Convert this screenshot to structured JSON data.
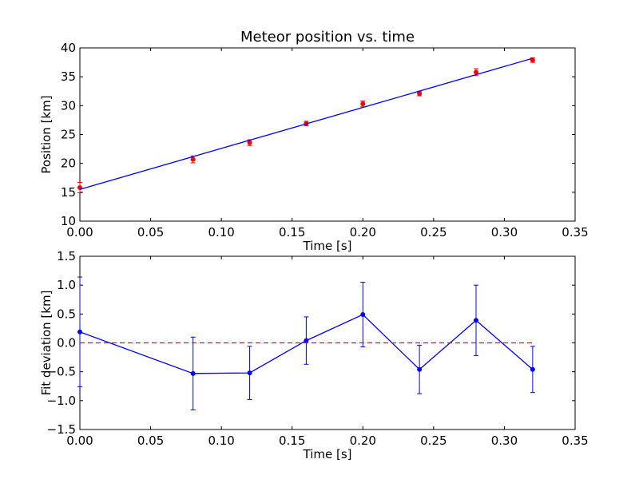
{
  "chart_data": [
    {
      "type": "line",
      "title": "Meteor position vs. time",
      "xlabel": "Time [s]",
      "ylabel": "Position [km]",
      "xlim": [
        0,
        0.35
      ],
      "ylim": [
        10,
        40
      ],
      "x_ticks": [
        0.0,
        0.05,
        0.1,
        0.15,
        0.2,
        0.25,
        0.3,
        0.35
      ],
      "x_tick_labels": [
        "0.00",
        "0.05",
        "0.10",
        "0.15",
        "0.20",
        "0.25",
        "0.30",
        "0.35"
      ],
      "y_ticks": [
        10,
        15,
        20,
        25,
        30,
        35,
        40
      ],
      "y_tick_labels": [
        "10",
        "15",
        "20",
        "25",
        "30",
        "35",
        "40"
      ],
      "grid": false,
      "series": [
        {
          "kind": "errorbar-points",
          "color": "#ff0000",
          "x": [
            0.0,
            0.08,
            0.12,
            0.16,
            0.2,
            0.24,
            0.28,
            0.32
          ],
          "y": [
            15.8,
            20.7,
            23.6,
            26.9,
            30.3,
            32.1,
            35.8,
            37.9
          ],
          "yerr": [
            0.9,
            0.6,
            0.5,
            0.4,
            0.5,
            0.4,
            0.6,
            0.4
          ]
        },
        {
          "kind": "fit-line",
          "color": "#0000ff",
          "x": [
            0.0,
            0.32
          ],
          "y": [
            15.5,
            38.2
          ]
        }
      ]
    },
    {
      "type": "line",
      "title": "",
      "xlabel": "Time [s]",
      "ylabel": "Fit deviation [km]",
      "xlim": [
        0,
        0.35
      ],
      "ylim": [
        -1.5,
        1.5
      ],
      "x_ticks": [
        0.0,
        0.05,
        0.1,
        0.15,
        0.2,
        0.25,
        0.3,
        0.35
      ],
      "x_tick_labels": [
        "0.00",
        "0.05",
        "0.10",
        "0.15",
        "0.20",
        "0.25",
        "0.30",
        "0.35"
      ],
      "y_ticks": [
        -1.5,
        -1.0,
        -0.5,
        0.0,
        0.5,
        1.0,
        1.5
      ],
      "y_tick_labels": [
        "−1.5",
        "−1.0",
        "−0.5",
        "0.0",
        "0.5",
        "1.0",
        "1.5"
      ],
      "grid": false,
      "series": [
        {
          "kind": "errorbar-line",
          "color": "#0000ff",
          "x": [
            0.0,
            0.08,
            0.12,
            0.16,
            0.2,
            0.24,
            0.28,
            0.32
          ],
          "y": [
            0.19,
            -0.53,
            -0.52,
            0.04,
            0.49,
            -0.46,
            0.39,
            -0.46
          ],
          "yerr": [
            0.95,
            0.63,
            0.46,
            0.41,
            0.56,
            0.42,
            0.61,
            0.4
          ]
        },
        {
          "kind": "reference-line",
          "style": "dashed",
          "color": "#ff0000",
          "x": [
            0.0,
            0.32
          ],
          "y": [
            0.0,
            0.0
          ]
        }
      ]
    }
  ]
}
